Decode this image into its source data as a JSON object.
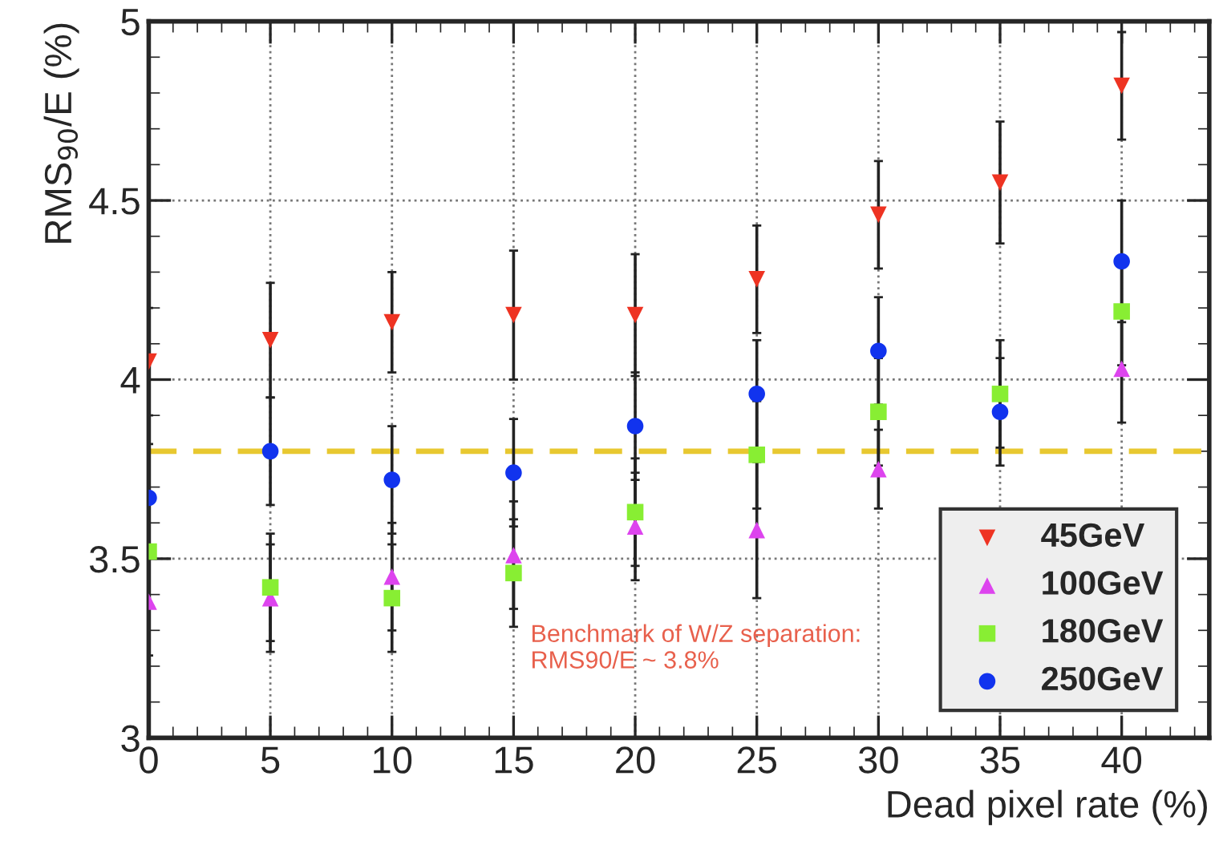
{
  "chart_data": {
    "type": "scatter",
    "xlabel": "Dead pixel rate (%)",
    "ylabel": "RMS$_{90}$/E (%)",
    "x": [
      0,
      5,
      10,
      15,
      20,
      25,
      30,
      35,
      40
    ],
    "series": [
      {
        "name": "45GeV",
        "color": "#ee3322",
        "marker": "triangle_down",
        "values": [
          4.05,
          4.11,
          4.16,
          4.18,
          4.18,
          4.28,
          4.46,
          4.55,
          4.82
        ],
        "errors": [
          0.15,
          0.16,
          0.14,
          0.18,
          0.17,
          0.15,
          0.15,
          0.17,
          0.15
        ]
      },
      {
        "name": "100GeV",
        "color": "#dd44ee",
        "marker": "triangle",
        "values": [
          3.38,
          3.39,
          3.45,
          3.51,
          3.59,
          3.58,
          3.75,
          null,
          4.03
        ],
        "errors": [
          0.15,
          0.15,
          0.15,
          0.15,
          0.15,
          0.19,
          0.11,
          null,
          0.15
        ]
      },
      {
        "name": "180GeV",
        "color": "#88ee33",
        "marker": "square",
        "values": [
          3.52,
          3.42,
          3.39,
          3.46,
          3.63,
          3.79,
          3.91,
          3.96,
          4.19
        ],
        "errors": [
          0.15,
          0.15,
          0.15,
          0.15,
          0.15,
          0.15,
          0.15,
          0.15,
          0.15
        ]
      },
      {
        "name": "250GeV",
        "color": "#1133ee",
        "marker": "circle",
        "values": [
          3.67,
          3.8,
          3.72,
          3.74,
          3.87,
          3.96,
          4.08,
          3.91,
          4.33
        ],
        "errors": [
          0.15,
          0.15,
          0.15,
          0.15,
          0.15,
          0.15,
          0.15,
          0.15,
          0.17
        ]
      }
    ],
    "xlim": [
      0,
      43.6
    ],
    "xticks": [
      0,
      5,
      10,
      15,
      20,
      25,
      30,
      35,
      40
    ],
    "ylim": [
      3,
      5
    ],
    "yticks": [
      3,
      3.5,
      4,
      4.5,
      5
    ],
    "ref_lines": [
      {
        "axis": "y",
        "value": 3.8,
        "color": "#e8c830",
        "line_style": "dashed"
      }
    ],
    "annotations": [
      "Benchmark of W/Z separation:\nRMS90/E ~ 3.8%"
    ],
    "grid": true,
    "legend": "bottom right"
  }
}
